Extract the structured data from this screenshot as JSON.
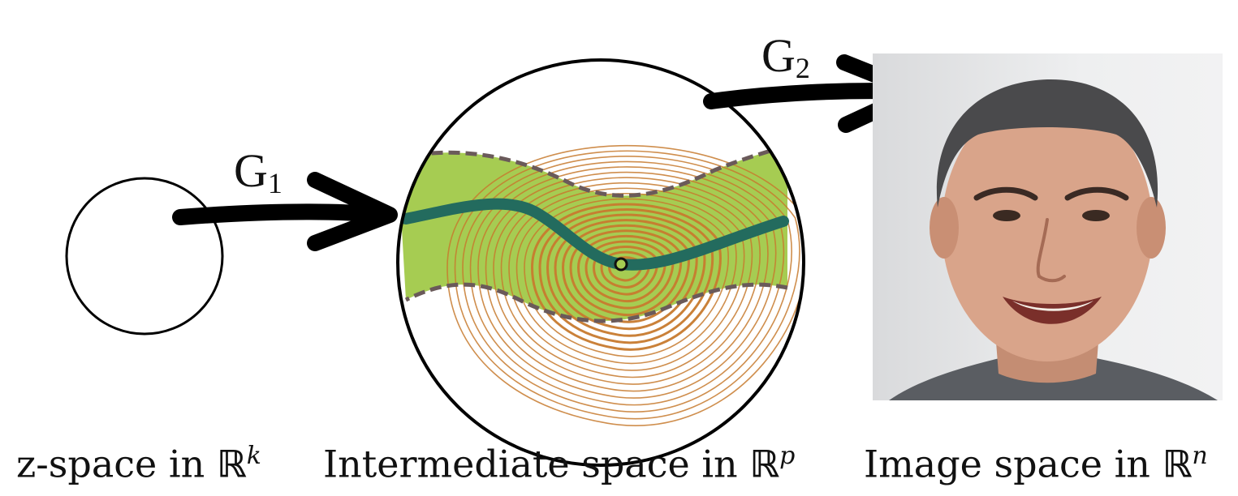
{
  "arrows": {
    "g1_letter": "G",
    "g1_sub": "1",
    "g2_letter": "G",
    "g2_sub": "2"
  },
  "labels": {
    "z_space_text": "z-space in ",
    "z_space_field": "ℝ",
    "z_space_exp": "k",
    "intermediate_text": "Intermediate space in ",
    "intermediate_field": "ℝ",
    "intermediate_exp": "p",
    "image_text": "Image space in ",
    "image_field": "ℝ",
    "image_exp": "n"
  },
  "colors": {
    "band_fill": "#a6cc52",
    "band_border": "#6a5a5a",
    "path_line": "#236b5e",
    "contour": "#c77a2e",
    "arrow": "#000000"
  }
}
